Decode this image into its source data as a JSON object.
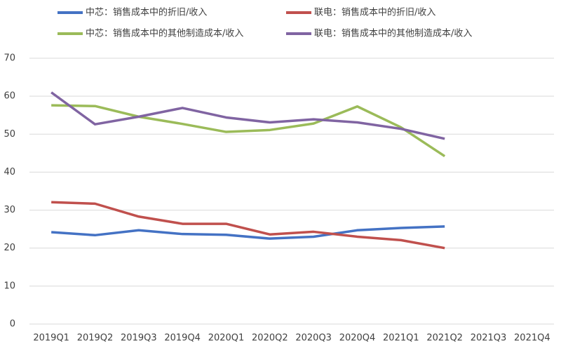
{
  "chart_data": {
    "type": "line",
    "categories": [
      "2019Q1",
      "2019Q2",
      "2019Q3",
      "2019Q4",
      "2020Q1",
      "2020Q2",
      "2020Q3",
      "2020Q4",
      "2021Q1",
      "2021Q2",
      "2021Q3",
      "2021Q4"
    ],
    "series": [
      {
        "name": "中芯：销售成本中的折旧/收入",
        "color": "#4472c4",
        "values": [
          24.2,
          23.4,
          24.7,
          23.7,
          23.5,
          22.5,
          23.0,
          24.7,
          25.3,
          25.7,
          null,
          null
        ]
      },
      {
        "name": "联电：销售成本中的折旧/收入",
        "color": "#c0504d",
        "values": [
          32.1,
          31.7,
          28.3,
          26.4,
          26.4,
          23.6,
          24.3,
          23.0,
          22.1,
          20.0,
          null,
          null
        ]
      },
      {
        "name": "中芯：销售成本中的其他制造成本/收入",
        "color": "#9bbb59",
        "values": [
          57.6,
          57.4,
          54.6,
          52.7,
          50.6,
          51.1,
          52.8,
          57.3,
          51.8,
          44.2,
          null,
          null
        ]
      },
      {
        "name": "联电：销售成本中的其他制造成本/收入",
        "color": "#8064a2",
        "values": [
          61.0,
          52.6,
          54.6,
          56.9,
          54.4,
          53.1,
          53.9,
          53.1,
          51.4,
          48.8,
          null,
          null
        ]
      }
    ],
    "ylim": [
      0,
      70
    ],
    "yticks": [
      0,
      10,
      20,
      30,
      40,
      50,
      60,
      70
    ],
    "grid": true
  }
}
